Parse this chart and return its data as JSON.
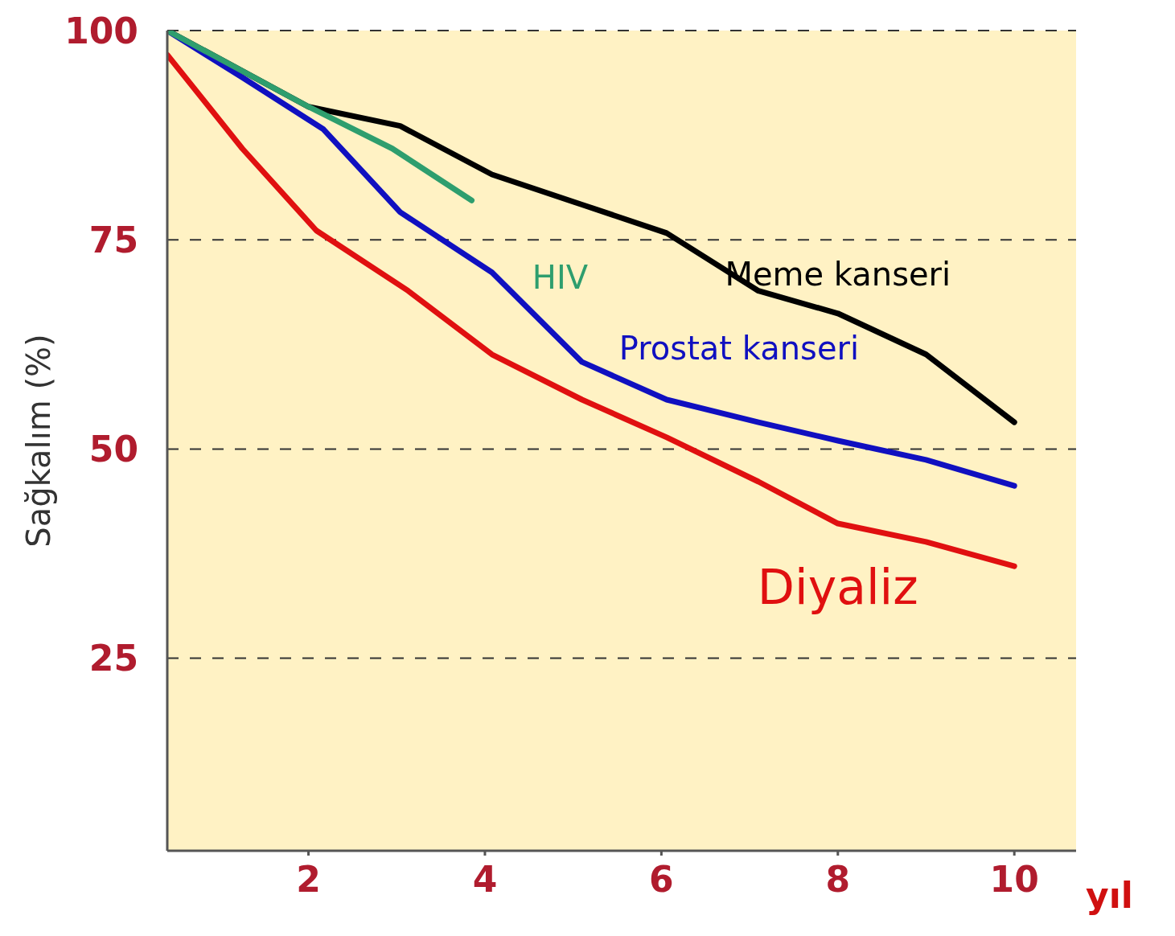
{
  "chart_data": {
    "type": "line",
    "xlabel": "yıl",
    "ylabel": "Sağkalım (%)",
    "xlim": [
      0.4,
      10.7
    ],
    "ylim": [
      2,
      100
    ],
    "xticks": [
      2,
      4,
      6,
      8,
      10
    ],
    "yticks": [
      25,
      50,
      75,
      100
    ],
    "grid": "y",
    "legend": false,
    "marker": "none",
    "line_style": "solid",
    "series": [
      {
        "name": "Meme kanseri",
        "color": "#000000",
        "x": [
          0.4,
          2,
          3.04,
          4.08,
          5.1,
          6.06,
          7.1,
          8,
          9,
          10
        ],
        "values": [
          100,
          90.9,
          88.6,
          82.8,
          79.2,
          75.8,
          68.9,
          66.2,
          61.3,
          53.2
        ]
      },
      {
        "name": "Prostat kanseri",
        "color": "#1010c0",
        "x": [
          0.4,
          1.25,
          2.17,
          3.04,
          4.08,
          5.1,
          6.06,
          7.1,
          8,
          9,
          10
        ],
        "values": [
          100,
          94.4,
          88.2,
          78.3,
          71.1,
          60.4,
          55.9,
          53.2,
          51,
          48.7,
          45.6
        ]
      },
      {
        "name": "HIV",
        "color": "#2e9e6e",
        "x": [
          0.4,
          2,
          2.95,
          3.85
        ],
        "values": [
          100,
          90.9,
          85.9,
          79.7
        ]
      },
      {
        "name": "Diyaliz",
        "color": "#e01010",
        "x": [
          0.4,
          1.25,
          2.09,
          3.13,
          4.08,
          5.1,
          6.06,
          7.1,
          8,
          9,
          10
        ],
        "values": [
          97.1,
          85.9,
          76.1,
          68.9,
          61.3,
          55.9,
          51.4,
          46.1,
          41.1,
          38.9,
          36
        ]
      }
    ]
  }
}
